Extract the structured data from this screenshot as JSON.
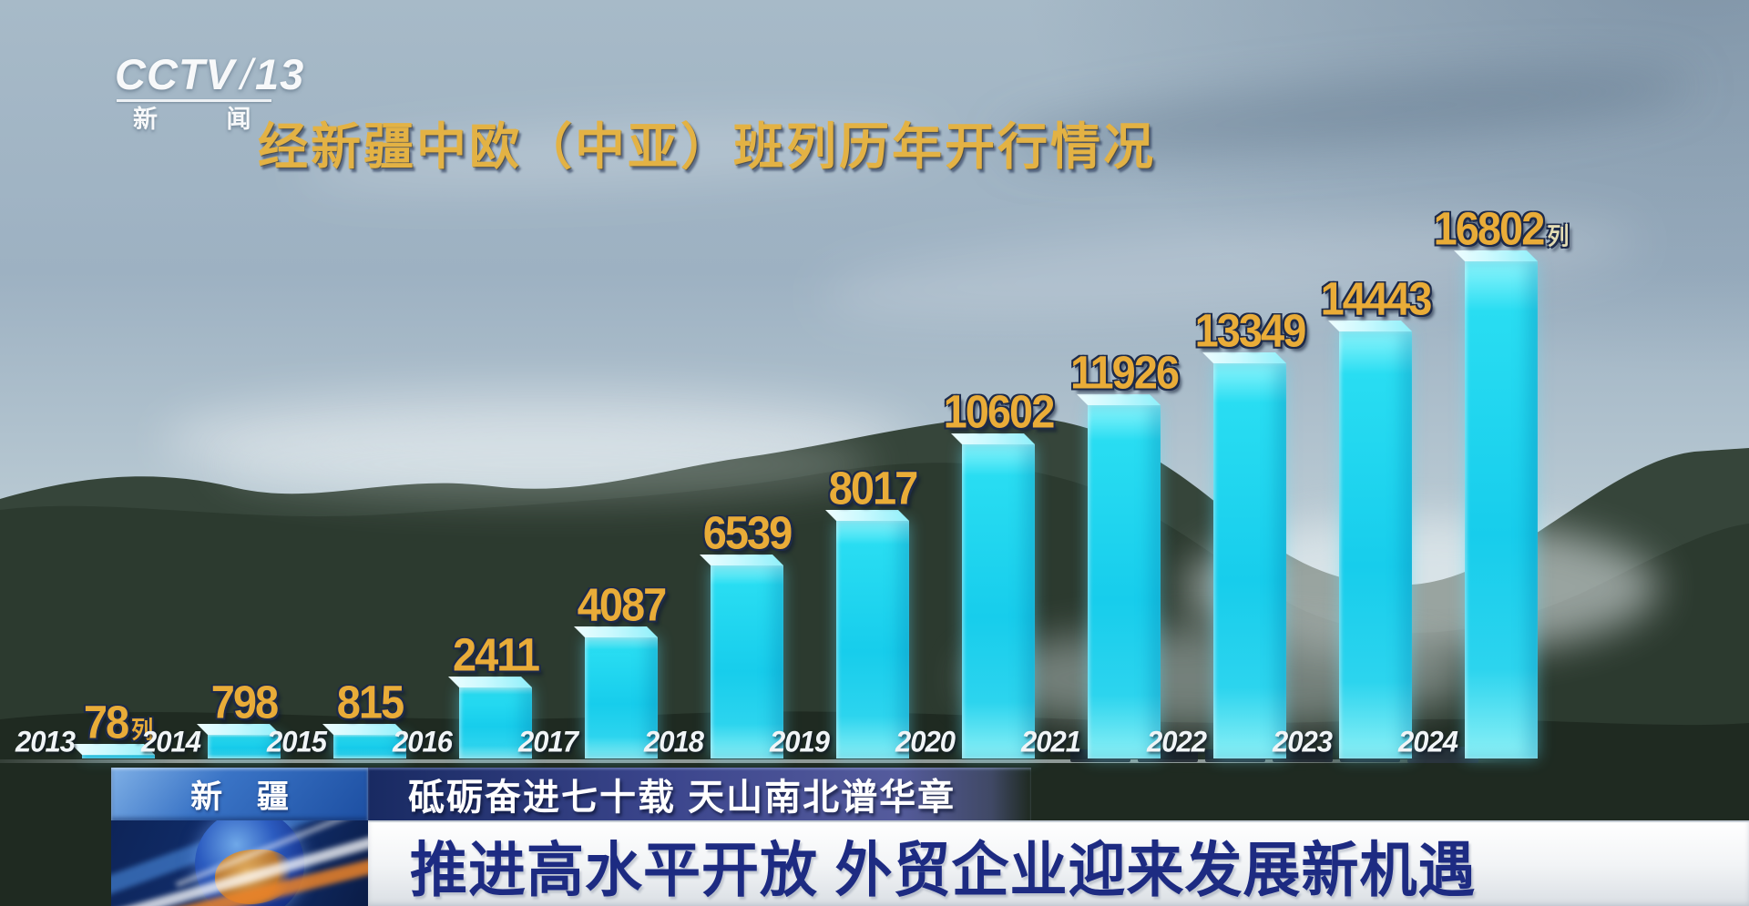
{
  "channel": {
    "wordmark": "CCTV",
    "slash": "/",
    "number": "13",
    "subtitle": "新 闻"
  },
  "title": "经新疆中欧（中亚）班列历年开行情况",
  "chart_data": {
    "type": "bar",
    "title": "经新疆中欧（中亚）班列历年开行情况",
    "unit": "列",
    "categories": [
      "2013",
      "2014",
      "2015",
      "2016",
      "2017",
      "2018",
      "2019",
      "2020",
      "2021",
      "2022",
      "2023",
      "2024"
    ],
    "values": [
      78,
      798,
      815,
      2411,
      4087,
      6539,
      8017,
      10602,
      11926,
      13349,
      14443,
      16802
    ],
    "value_labels": [
      "78",
      "798",
      "815",
      "2411",
      "4087",
      "6539",
      "8017",
      "10602",
      "11926",
      "13349",
      "14443",
      "16802"
    ],
    "unit_suffix_indices": [
      0,
      11
    ],
    "ylim": [
      0,
      17000
    ],
    "xlabel": "",
    "ylabel": "",
    "grid": false,
    "legend": false,
    "bar_color": "#17cdec",
    "bar_top_color": "#d8fbff",
    "value_label_color": "#e9ac38",
    "year_label_color": "#f1f5f7"
  },
  "banner": {
    "region": "新 疆",
    "series_title": "砥砺奋进七十载 天山南北谱华章",
    "headline": "推进高水平开放 外贸企业迎来发展新机遇"
  }
}
